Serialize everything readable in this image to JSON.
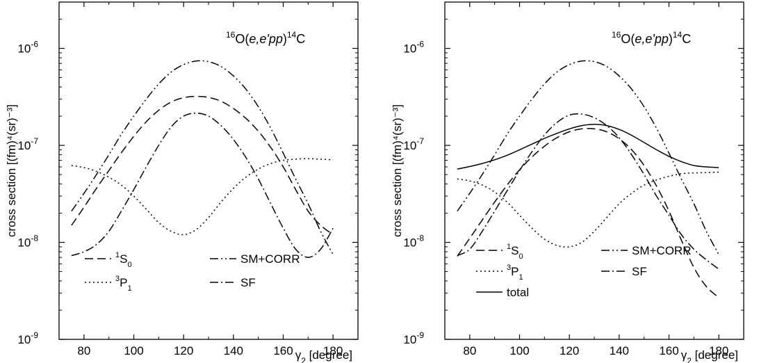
{
  "chart_data": [
    {
      "type": "line",
      "title": "",
      "annotation": {
        "pre": "16",
        "a": "O(",
        "b": "e,e'pp",
        "c": ")",
        "sup2": "14",
        "d": "C"
      },
      "xlabel": {
        "sym": "γ",
        "sub": "2",
        "rest": " [degree]"
      },
      "ylabel": "cross section [(fm)⁴(sr)⁻³]",
      "xlim": [
        70,
        190
      ],
      "ylim": [
        1e-09,
        3e-06
      ],
      "yscale": "log",
      "xticks": [
        80,
        100,
        120,
        140,
        160,
        180
      ],
      "yticks": [
        {
          "value": 1e-09,
          "base": "10",
          "exp": "-9"
        },
        {
          "value": 1e-08,
          "base": "10",
          "exp": "-8"
        },
        {
          "value": 1e-07,
          "base": "10",
          "exp": "-7"
        },
        {
          "value": 1e-06,
          "base": "10",
          "exp": "-6"
        }
      ],
      "x": [
        75,
        80,
        85,
        90,
        95,
        100,
        105,
        110,
        115,
        120,
        125,
        130,
        135,
        140,
        145,
        150,
        155,
        160,
        165,
        170,
        175,
        180
      ],
      "series": [
        {
          "name": "1S0",
          "label": {
            "sup": "1",
            "main": "S",
            "sub": "0"
          },
          "dash": "12 6",
          "values": [
            1.5e-08,
            2.3e-08,
            3.6e-08,
            5.5e-08,
            8.4e-08,
            1.24e-07,
            1.75e-07,
            2.3e-07,
            2.8e-07,
            3.1e-07,
            3.2e-07,
            3.12e-07,
            2.85e-07,
            2.4e-07,
            1.9e-07,
            1.4e-07,
            9.5e-08,
            6e-08,
            3.5e-08,
            2.1e-08,
            1.5e-08,
            1.2e-08
          ]
        },
        {
          "name": "3P1",
          "label": {
            "sup": "3",
            "main": "P",
            "sub": "1"
          },
          "dash": "2 4",
          "values": [
            6.2e-08,
            5.9e-08,
            5.4e-08,
            4.7e-08,
            3.9e-08,
            3e-08,
            2.2e-08,
            1.6e-08,
            1.3e-08,
            1.2e-08,
            1.35e-08,
            1.8e-08,
            2.6e-08,
            3.6e-08,
            4.7e-08,
            5.7e-08,
            6.5e-08,
            7e-08,
            7.2e-08,
            7.3e-08,
            7.2e-08,
            7.1e-08
          ]
        },
        {
          "name": "SM+CORR",
          "label": {
            "sup": "",
            "main": "SM+CORR",
            "sub": ""
          },
          "dash": "12 4 2 4 2 4",
          "values": [
            2.1e-08,
            3.2e-08,
            5e-08,
            8e-08,
            1.3e-07,
            2e-07,
            3e-07,
            4.3e-07,
            5.7e-07,
            6.8e-07,
            7.4e-07,
            7.3e-07,
            6.5e-07,
            5.2e-07,
            3.8e-07,
            2.5e-07,
            1.5e-07,
            8.3e-08,
            4.5e-08,
            2.5e-08,
            1.3e-08,
            7.5e-09
          ]
        },
        {
          "name": "SF",
          "label": {
            "sup": "",
            "main": "SF",
            "sub": ""
          },
          "dash": "12 4 2 4",
          "values": [
            7.3e-09,
            8e-09,
            9.5e-09,
            1.3e-08,
            2.1e-08,
            3.5e-08,
            6e-08,
            1e-07,
            1.55e-07,
            2e-07,
            2.15e-07,
            2e-07,
            1.6e-07,
            1.15e-07,
            7.5e-08,
            4.5e-08,
            2.5e-08,
            1.4e-08,
            8.5e-09,
            7e-09,
            8.5e-09,
            1.4e-08
          ]
        }
      ],
      "legend_layout": [
        [
          "1S0",
          "SM+CORR"
        ],
        [
          "3P1",
          "SF"
        ]
      ]
    },
    {
      "type": "line",
      "title": "",
      "annotation": {
        "pre": "16",
        "a": "O(",
        "b": "e,e'pp",
        "c": ")",
        "sup2": "14",
        "d": "C"
      },
      "xlabel": {
        "sym": "γ",
        "sub": "2",
        "rest": " [degree]"
      },
      "ylabel": "cross section [(fm)⁴(sr)⁻³]",
      "xlim": [
        70,
        190
      ],
      "ylim": [
        1e-09,
        3e-06
      ],
      "yscale": "log",
      "xticks": [
        80,
        100,
        120,
        140,
        160,
        180
      ],
      "yticks": [
        {
          "value": 1e-09,
          "base": "10",
          "exp": "-9"
        },
        {
          "value": 1e-08,
          "base": "10",
          "exp": "-8"
        },
        {
          "value": 1e-07,
          "base": "10",
          "exp": "-7"
        },
        {
          "value": 1e-06,
          "base": "10",
          "exp": "-6"
        }
      ],
      "x": [
        75,
        80,
        85,
        90,
        95,
        100,
        105,
        110,
        115,
        120,
        125,
        130,
        135,
        140,
        145,
        150,
        155,
        160,
        165,
        170,
        175,
        180
      ],
      "series": [
        {
          "name": "1S0",
          "label": {
            "sup": "1",
            "main": "S",
            "sub": "0"
          },
          "dash": "12 6",
          "values": [
            7.2e-09,
            1.1e-08,
            1.7e-08,
            2.6e-08,
            3.9e-08,
            5.6e-08,
            7.6e-08,
            9.8e-08,
            1.2e-07,
            1.38e-07,
            1.48e-07,
            1.48e-07,
            1.38e-07,
            1.17e-07,
            9e-08,
            6.2e-08,
            3.8e-08,
            2.1e-08,
            1.05e-08,
            5.5e-09,
            3.5e-09,
            2.7e-09
          ]
        },
        {
          "name": "3P1",
          "label": {
            "sup": "3",
            "main": "P",
            "sub": "1"
          },
          "dash": "2 4",
          "values": [
            4.5e-08,
            4.3e-08,
            3.9e-08,
            3.3e-08,
            2.6e-08,
            1.9e-08,
            1.4e-08,
            1.08e-08,
            9.3e-09,
            9e-09,
            1e-08,
            1.3e-08,
            1.8e-08,
            2.5e-08,
            3.2e-08,
            3.9e-08,
            4.4e-08,
            4.8e-08,
            5.1e-08,
            5.2e-08,
            5.25e-08,
            5.3e-08
          ]
        },
        {
          "name": "SM+CORR",
          "label": {
            "sup": "",
            "main": "SM+CORR",
            "sub": ""
          },
          "dash": "12 4 2 4 2 4",
          "values": [
            2.1e-08,
            3.2e-08,
            5e-08,
            8e-08,
            1.3e-07,
            2e-07,
            3e-07,
            4.3e-07,
            5.7e-07,
            6.8e-07,
            7.4e-07,
            7.3e-07,
            6.5e-07,
            5.2e-07,
            3.8e-07,
            2.5e-07,
            1.5e-07,
            8.3e-08,
            4.5e-08,
            2.5e-08,
            1.3e-08,
            7.5e-09
          ]
        },
        {
          "name": "SF",
          "label": {
            "sup": "",
            "main": "SF",
            "sub": ""
          },
          "dash": "12 4 2 4",
          "values": [
            7.3e-09,
            8.5e-09,
            1.3e-08,
            2.1e-08,
            3.4e-08,
            5.5e-08,
            8.6e-08,
            1.28e-07,
            1.72e-07,
            2.05e-07,
            2.1e-07,
            1.93e-07,
            1.6e-07,
            1.2e-07,
            8e-08,
            5e-08,
            3e-08,
            1.9e-08,
            1.2e-08,
            8.5e-09,
            6.6e-09,
            5.3e-09
          ]
        },
        {
          "name": "total",
          "label": {
            "sup": "",
            "main": "total",
            "sub": ""
          },
          "dash": "",
          "values": [
            5.7e-08,
            6.05e-08,
            6.5e-08,
            7.1e-08,
            7.9e-08,
            9e-08,
            1.03e-07,
            1.18e-07,
            1.33e-07,
            1.48e-07,
            1.6e-07,
            1.65e-07,
            1.6e-07,
            1.46e-07,
            1.27e-07,
            1.07e-07,
            9e-08,
            7.7e-08,
            6.8e-08,
            6.2e-08,
            6e-08,
            5.9e-08
          ]
        }
      ],
      "legend_layout": [
        [
          "1S0",
          "SM+CORR"
        ],
        [
          "3P1",
          "SF"
        ],
        [
          "total",
          null
        ]
      ]
    }
  ]
}
